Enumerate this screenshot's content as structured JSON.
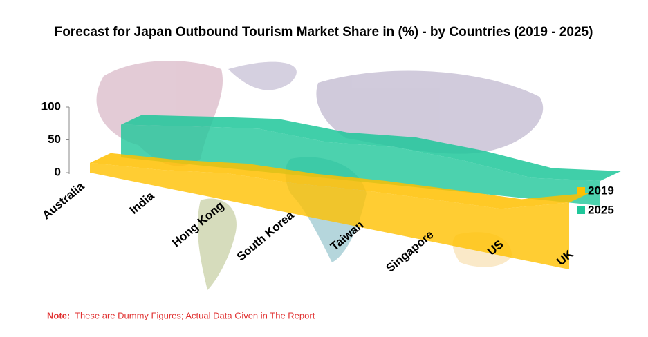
{
  "chart_data": {
    "type": "area3d",
    "title": "Forecast for Japan Outbound Tourism Market Share in (%) - by Countries (2019 - 2025)",
    "categories": [
      "Australia",
      "India",
      "Hong Kong",
      "South Korea",
      "Taiwan",
      "Singapore",
      "US",
      "UK"
    ],
    "series": [
      {
        "name": "2019",
        "color": "#ffc000",
        "values": [
          15,
          15,
          20,
          15,
          15,
          12,
          8,
          28
        ]
      },
      {
        "name": "2025",
        "color": "#1fc79a",
        "values": [
          50,
          58,
          65,
          55,
          58,
          48,
          32,
          38
        ]
      }
    ],
    "ylim": [
      0,
      100
    ],
    "yticks": [
      0,
      50,
      100
    ],
    "legend": "right",
    "note_label": "Note:",
    "note": "These are Dummy Figures; Actual Data Given in The Report"
  }
}
